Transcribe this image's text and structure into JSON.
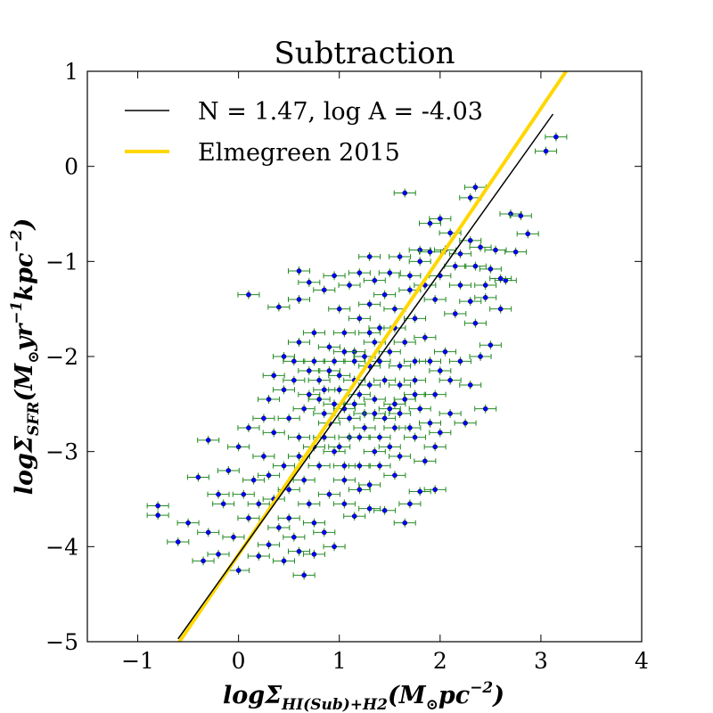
{
  "chart_data": {
    "type": "scatter",
    "title": "Subtraction",
    "xlabel": {
      "prefix": "logΣ",
      "subscript": "HI(Sub)+H2",
      "paren_open": "(M",
      "sun_subscript": "⊙",
      "unit": "pc",
      "exponent": "−2",
      "paren_close": ")"
    },
    "ylabel": {
      "prefix": "logΣ",
      "subscript": "SFR",
      "paren_open": "(M",
      "sun_subscript": "⊙",
      "unit1": "yr",
      "exponent1": "−1",
      "unit2": "kpc",
      "exponent2": "−2",
      "paren_close": ")"
    },
    "xlim": [
      -1.5,
      4
    ],
    "ylim": [
      -5,
      1
    ],
    "xticks": [
      -1,
      0,
      1,
      2,
      3,
      4
    ],
    "xtick_labels": [
      "−1",
      "0",
      "1",
      "2",
      "3",
      "4"
    ],
    "yticks": [
      -5,
      -4,
      -3,
      -2,
      -1,
      0,
      1
    ],
    "ytick_labels": [
      "−5",
      "−4",
      "−3",
      "−2",
      "−1",
      "0",
      "1"
    ],
    "grid": false,
    "legend_position": "top-left",
    "series": [
      {
        "name": "N = 1.47, log A = -4.03",
        "kind": "line",
        "color": "#000000",
        "x": [
          -0.6,
          3.12
        ],
        "y": [
          -4.97,
          0.55
        ]
      },
      {
        "name": "Elmegreen 2015",
        "kind": "line",
        "color": "#FFD700",
        "x": [
          -0.65,
          3.25
        ],
        "y": [
          -5.1,
          1.0
        ]
      },
      {
        "kind": "scatter",
        "marker_color": "#0000FF",
        "errorbar_color": "#228B22",
        "points": [
          [
            -0.8,
            -3.57
          ],
          [
            -0.8,
            -3.67
          ],
          [
            -0.6,
            -3.95
          ],
          [
            -0.5,
            -3.75
          ],
          [
            -0.3,
            -2.88
          ],
          [
            -0.15,
            -3.55
          ],
          [
            -0.4,
            -3.27
          ],
          [
            0.1,
            -1.35
          ],
          [
            0.0,
            -4.25
          ],
          [
            -0.2,
            -4.08
          ],
          [
            0.4,
            -1.48
          ],
          [
            0.6,
            -1.4
          ],
          [
            0.7,
            -1.22
          ],
          [
            0.6,
            -1.1
          ],
          [
            0.85,
            -1.3
          ],
          [
            1.3,
            -0.95
          ],
          [
            1.2,
            -1.12
          ],
          [
            1.0,
            -1.5
          ],
          [
            1.5,
            -1.12
          ],
          [
            1.7,
            -1.3
          ],
          [
            1.8,
            -0.88
          ],
          [
            1.9,
            -0.6
          ],
          [
            2.0,
            -0.55
          ],
          [
            2.1,
            -0.7
          ],
          [
            2.3,
            -0.78
          ],
          [
            2.2,
            -0.92
          ],
          [
            2.35,
            -1.05
          ],
          [
            2.5,
            -1.08
          ],
          [
            2.6,
            -1.5
          ],
          [
            2.45,
            -1.38
          ],
          [
            2.7,
            -0.5
          ],
          [
            2.8,
            -0.52
          ],
          [
            2.87,
            -0.71
          ],
          [
            2.55,
            -0.88
          ],
          [
            2.65,
            -1.2
          ],
          [
            3.05,
            0.16
          ],
          [
            3.15,
            0.31
          ],
          [
            2.3,
            -0.33
          ],
          [
            2.35,
            -0.22
          ],
          [
            1.65,
            -0.28
          ],
          [
            2.05,
            -0.88
          ],
          [
            1.9,
            -0.9
          ],
          [
            0.3,
            -2.45
          ],
          [
            0.35,
            -2.8
          ],
          [
            0.25,
            -3.05
          ],
          [
            0.45,
            -3.15
          ],
          [
            0.15,
            -3.3
          ],
          [
            0.2,
            -3.55
          ],
          [
            0.5,
            -3.7
          ],
          [
            0.3,
            -3.98
          ],
          [
            0.45,
            -4.15
          ],
          [
            0.65,
            -4.3
          ],
          [
            0.75,
            -4.08
          ],
          [
            0.55,
            -3.9
          ],
          [
            0.85,
            -3.85
          ],
          [
            0.95,
            -4.0
          ],
          [
            1.15,
            -3.68
          ],
          [
            1.3,
            -3.6
          ],
          [
            1.45,
            -3.62
          ],
          [
            1.65,
            -3.75
          ],
          [
            1.8,
            -3.42
          ],
          [
            1.95,
            -3.4
          ],
          [
            1.7,
            -3.55
          ],
          [
            1.55,
            -3.25
          ],
          [
            1.2,
            -3.4
          ],
          [
            1.05,
            -3.15
          ],
          [
            1.35,
            -3.0
          ],
          [
            1.5,
            -2.95
          ],
          [
            1.75,
            -2.85
          ],
          [
            1.95,
            -2.95
          ],
          [
            2.1,
            -2.6
          ],
          [
            2.3,
            -2.3
          ],
          [
            2.2,
            -2.05
          ],
          [
            2.4,
            -2.0
          ],
          [
            2.5,
            -1.88
          ],
          [
            2.35,
            -1.65
          ],
          [
            2.15,
            -1.55
          ],
          [
            1.95,
            -1.4
          ],
          [
            1.75,
            -1.6
          ],
          [
            1.55,
            -1.5
          ],
          [
            1.4,
            -1.7
          ],
          [
            1.2,
            -1.6
          ],
          [
            1.05,
            -1.75
          ],
          [
            0.9,
            -1.9
          ],
          [
            0.75,
            -1.75
          ],
          [
            0.6,
            -1.85
          ],
          [
            0.45,
            -2.0
          ],
          [
            0.55,
            -2.25
          ],
          [
            0.7,
            -2.15
          ],
          [
            0.85,
            -2.35
          ],
          [
            1.0,
            -2.2
          ],
          [
            1.15,
            -2.05
          ],
          [
            1.3,
            -2.1
          ],
          [
            1.45,
            -2.25
          ],
          [
            1.6,
            -2.1
          ],
          [
            1.75,
            -2.25
          ],
          [
            1.9,
            -2.05
          ],
          [
            2.05,
            -1.95
          ],
          [
            1.85,
            -1.8
          ],
          [
            1.65,
            -1.85
          ],
          [
            1.5,
            -1.95
          ],
          [
            1.35,
            -1.85
          ],
          [
            1.15,
            -1.95
          ],
          [
            0.95,
            -2.05
          ],
          [
            0.8,
            -2.45
          ],
          [
            0.65,
            -2.55
          ],
          [
            0.5,
            -2.65
          ],
          [
            0.6,
            -2.85
          ],
          [
            0.75,
            -2.95
          ],
          [
            0.9,
            -2.7
          ],
          [
            1.05,
            -2.55
          ],
          [
            1.2,
            -2.4
          ],
          [
            1.35,
            -2.45
          ],
          [
            1.5,
            -2.55
          ],
          [
            1.65,
            -2.45
          ],
          [
            1.8,
            -2.55
          ],
          [
            1.95,
            -2.4
          ],
          [
            2.1,
            -2.25
          ],
          [
            1.9,
            -2.7
          ],
          [
            1.7,
            -2.75
          ],
          [
            1.55,
            -2.75
          ],
          [
            1.4,
            -2.85
          ],
          [
            1.25,
            -2.75
          ],
          [
            1.1,
            -2.85
          ],
          [
            0.95,
            -3.0
          ],
          [
            0.8,
            -3.15
          ],
          [
            0.65,
            -3.3
          ],
          [
            0.5,
            -3.4
          ],
          [
            0.35,
            -3.5
          ],
          [
            0.7,
            -3.55
          ],
          [
            0.9,
            -3.45
          ],
          [
            1.05,
            -3.3
          ],
          [
            1.2,
            -3.15
          ],
          [
            1.4,
            -3.15
          ],
          [
            1.0,
            -2.95
          ],
          [
            0.8,
            -2.25
          ],
          [
            1.0,
            -2.35
          ],
          [
            1.15,
            -2.25
          ],
          [
            1.25,
            -2.6
          ],
          [
            1.45,
            -2.65
          ],
          [
            1.3,
            -2.3
          ],
          [
            1.6,
            -2.3
          ],
          [
            1.1,
            -2.65
          ],
          [
            0.95,
            -2.5
          ],
          [
            0.85,
            -2.6
          ],
          [
            1.75,
            -2.05
          ],
          [
            2.0,
            -2.15
          ],
          [
            1.55,
            -1.7
          ],
          [
            1.3,
            -1.45
          ],
          [
            1.7,
            -1.15
          ],
          [
            2.2,
            -1.25
          ],
          [
            2.45,
            -1.25
          ],
          [
            0.3,
            -3.25
          ],
          [
            0.1,
            -3.7
          ],
          [
            -0.3,
            -3.85
          ],
          [
            -0.05,
            -3.9
          ],
          [
            0.2,
            -4.1
          ],
          [
            -0.35,
            -4.15
          ],
          [
            0.6,
            -4.05
          ],
          [
            0.25,
            -2.65
          ],
          [
            0.45,
            -2.35
          ],
          [
            0.55,
            -2.05
          ],
          [
            0.35,
            -2.2
          ],
          [
            0.0,
            -2.95
          ],
          [
            0.1,
            -2.75
          ],
          [
            -0.1,
            -3.2
          ],
          [
            -0.2,
            -3.45
          ],
          [
            0.05,
            -3.45
          ],
          [
            0.4,
            -3.8
          ],
          [
            0.75,
            -3.75
          ],
          [
            1.05,
            -3.55
          ],
          [
            1.3,
            -3.35
          ],
          [
            1.6,
            -3.05
          ],
          [
            1.85,
            -3.1
          ],
          [
            2.0,
            -2.8
          ],
          [
            2.25,
            -2.7
          ],
          [
            2.45,
            -2.55
          ],
          [
            1.35,
            -1.2
          ],
          [
            1.1,
            -1.25
          ],
          [
            0.95,
            -1.15
          ],
          [
            1.45,
            -1.35
          ],
          [
            1.8,
            -1.0
          ],
          [
            2.0,
            -1.15
          ],
          [
            2.15,
            -1.05
          ],
          [
            1.6,
            -0.95
          ],
          [
            1.85,
            -1.25
          ],
          [
            2.3,
            -1.42
          ],
          [
            2.6,
            -1.18
          ],
          [
            2.4,
            -0.85
          ],
          [
            2.75,
            -0.9
          ],
          [
            1.55,
            -2.5
          ],
          [
            1.75,
            -2.4
          ],
          [
            1.25,
            -2.0
          ],
          [
            0.9,
            -2.15
          ],
          [
            0.7,
            -2.4
          ],
          [
            1.4,
            -2.05
          ],
          [
            1.6,
            -2.6
          ],
          [
            1.2,
            -2.85
          ],
          [
            0.85,
            -2.85
          ],
          [
            0.6,
            -3.05
          ],
          [
            1.15,
            -2.5
          ],
          [
            1.35,
            -2.6
          ],
          [
            0.75,
            -2.05
          ],
          [
            1.05,
            -1.95
          ],
          [
            1.3,
            -1.75
          ]
        ]
      }
    ]
  }
}
